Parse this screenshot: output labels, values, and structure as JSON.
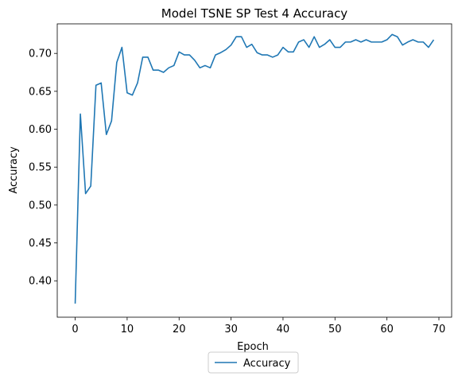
{
  "chart_data": {
    "type": "line",
    "title": "Model TSNE SP Test 4 Accuracy",
    "xlabel": "Epoch",
    "ylabel": "Accuracy",
    "xlim": [
      -3.45,
      72.45
    ],
    "ylim": [
      0.352,
      0.739
    ],
    "xticks": [
      0,
      10,
      20,
      30,
      40,
      50,
      60,
      70
    ],
    "yticks": [
      0.4,
      0.45,
      0.5,
      0.55,
      0.6,
      0.65,
      0.7
    ],
    "ytick_labels": [
      "0.40",
      "0.45",
      "0.50",
      "0.55",
      "0.60",
      "0.65",
      "0.70"
    ],
    "grid": false,
    "legend_position": "lower center, below axes",
    "color": "#1f77b4",
    "series": [
      {
        "name": "Accuracy",
        "x": [
          0,
          1,
          2,
          3,
          4,
          5,
          6,
          7,
          8,
          9,
          10,
          11,
          12,
          13,
          14,
          15,
          16,
          17,
          18,
          19,
          20,
          21,
          22,
          23,
          24,
          25,
          26,
          27,
          28,
          29,
          30,
          31,
          32,
          33,
          34,
          35,
          36,
          37,
          38,
          39,
          40,
          41,
          42,
          43,
          44,
          45,
          46,
          47,
          48,
          49,
          50,
          51,
          52,
          53,
          54,
          55,
          56,
          57,
          58,
          59,
          60,
          61,
          62,
          63,
          64,
          65,
          66,
          67,
          68,
          69
        ],
        "values": [
          0.37,
          0.62,
          0.515,
          0.525,
          0.658,
          0.661,
          0.593,
          0.611,
          0.688,
          0.708,
          0.648,
          0.645,
          0.661,
          0.695,
          0.695,
          0.678,
          0.678,
          0.675,
          0.681,
          0.684,
          0.702,
          0.698,
          0.698,
          0.691,
          0.681,
          0.684,
          0.681,
          0.698,
          0.701,
          0.705,
          0.711,
          0.722,
          0.722,
          0.708,
          0.712,
          0.701,
          0.698,
          0.698,
          0.695,
          0.698,
          0.708,
          0.702,
          0.702,
          0.715,
          0.718,
          0.708,
          0.722,
          0.708,
          0.712,
          0.718,
          0.708,
          0.708,
          0.715,
          0.715,
          0.718,
          0.715,
          0.718,
          0.715,
          0.715,
          0.715,
          0.718,
          0.725,
          0.722,
          0.711,
          0.715,
          0.718,
          0.715,
          0.715,
          0.708,
          0.718
        ]
      }
    ]
  }
}
